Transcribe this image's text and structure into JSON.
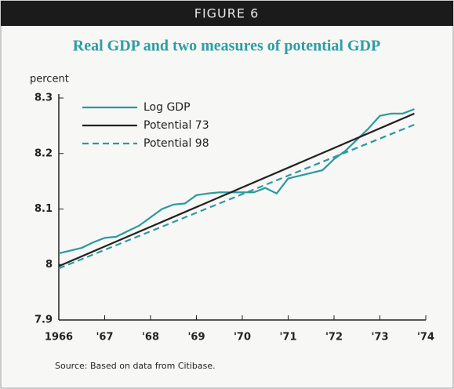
{
  "header": "FIGURE 6",
  "chart_data": {
    "type": "line",
    "title": "Real GDP and two measures of potential GDP",
    "ylabel": "percent",
    "source": "Source: Based on data from Citibase.",
    "xlim": [
      1966,
      1974
    ],
    "xticks": [
      1966,
      {
        "value": 1967,
        "label": "'67"
      },
      {
        "value": 1968,
        "label": "'68"
      },
      {
        "value": 1969,
        "label": "'69"
      },
      {
        "value": 1970,
        "label": "'70"
      },
      {
        "value": 1971,
        "label": "'71"
      },
      {
        "value": 1972,
        "label": "'72"
      },
      {
        "value": 1973,
        "label": "'73"
      },
      {
        "value": 1974,
        "label": "'74"
      }
    ],
    "ylim": [
      7.9,
      8.3
    ],
    "yticks": [
      7.9,
      8.0,
      8.1,
      8.2,
      8.3
    ],
    "legend": "upper left",
    "series": [
      {
        "name": "Log GDP",
        "color": "#2a9a9e",
        "dash": false,
        "x": [
          1966,
          1966.25,
          1966.5,
          1966.75,
          1967,
          1967.25,
          1967.5,
          1967.75,
          1968,
          1968.25,
          1968.5,
          1968.75,
          1969,
          1969.25,
          1969.5,
          1969.75,
          1970,
          1970.25,
          1970.5,
          1970.75,
          1971,
          1971.25,
          1971.5,
          1971.75,
          1972,
          1972.25,
          1972.5,
          1972.75,
          1973,
          1973.25,
          1973.5,
          1973.75
        ],
        "values": [
          8.02,
          8.025,
          8.03,
          8.04,
          8.048,
          8.05,
          8.06,
          8.07,
          8.085,
          8.1,
          8.108,
          8.11,
          8.125,
          8.128,
          8.13,
          8.13,
          8.13,
          8.13,
          8.138,
          8.128,
          8.155,
          8.16,
          8.165,
          8.17,
          8.19,
          8.205,
          8.225,
          8.245,
          8.268,
          8.272,
          8.272,
          8.28
        ]
      },
      {
        "name": "Potential 73",
        "color": "#222222",
        "dash": false,
        "x": [
          1966,
          1973.75
        ],
        "values": [
          7.997,
          8.272
        ]
      },
      {
        "name": "Potential 98",
        "color": "#2a9a9e",
        "dash": true,
        "x": [
          1966,
          1973.75
        ],
        "values": [
          7.993,
          8.252
        ]
      }
    ]
  }
}
